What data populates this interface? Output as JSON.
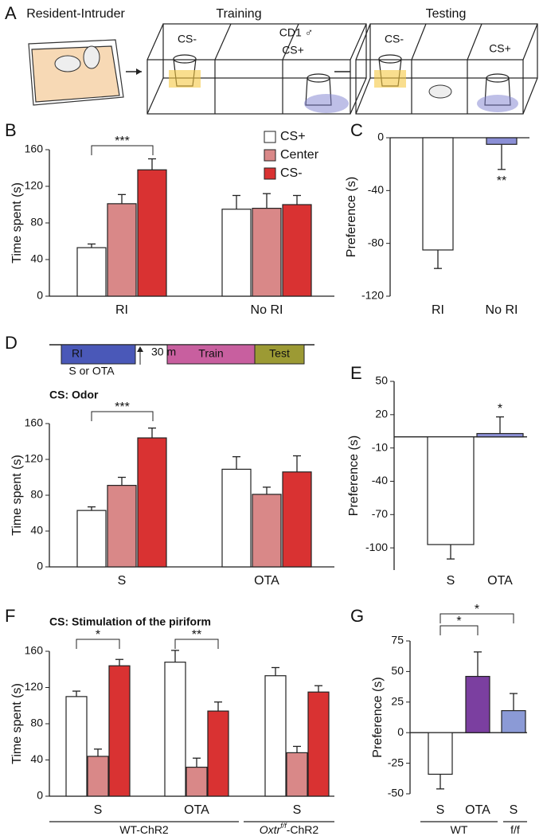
{
  "panel_a": {
    "label": "A",
    "titles": [
      "Resident-Intruder",
      "Training",
      "Testing"
    ],
    "labels": [
      "CS-",
      "CD1 ♂",
      "CS+",
      "CS-",
      "CS+"
    ]
  },
  "chart_data": [
    {
      "type": "bar",
      "panel": "B",
      "ylabel": "Time spent (s)",
      "categories": [
        "RI",
        "No RI"
      ],
      "series": [
        {
          "name": "CS+",
          "color": "#ffffff",
          "values": [
            53,
            95
          ],
          "errors": [
            4,
            15
          ]
        },
        {
          "name": "Center",
          "color": "#d98888",
          "values": [
            101,
            96
          ],
          "errors": [
            10,
            16
          ]
        },
        {
          "name": "CS-",
          "color": "#d93232",
          "values": [
            138,
            100
          ],
          "errors": [
            12,
            10
          ]
        }
      ],
      "ylim": [
        0,
        160
      ],
      "yticks": [
        0,
        40,
        80,
        120,
        160
      ],
      "legend": "top-right",
      "annotations": [
        "***"
      ]
    },
    {
      "type": "bar",
      "panel": "C",
      "ylabel": "Preference (s)",
      "categories": [
        "RI",
        "No RI"
      ],
      "values": [
        -85,
        -5
      ],
      "errors": [
        14,
        19
      ],
      "colors": [
        "#ffffff",
        "#8b8fd6"
      ],
      "ylim": [
        -120,
        0
      ],
      "yticks": [
        -120,
        -80,
        -40,
        0
      ],
      "annotations": [
        "**"
      ]
    },
    {
      "type": "bar",
      "panel": "D",
      "title": "CS: Odor",
      "ylabel": "Time spent (s)",
      "categories": [
        "S",
        "OTA"
      ],
      "timeline": [
        "RI",
        "S or OTA",
        "30 m",
        "Train",
        "Test"
      ],
      "series": [
        {
          "name": "CS+",
          "color": "#ffffff",
          "values": [
            63,
            109
          ],
          "errors": [
            4,
            14
          ]
        },
        {
          "name": "Center",
          "color": "#d98888",
          "values": [
            91,
            81
          ],
          "errors": [
            9,
            8
          ]
        },
        {
          "name": "CS-",
          "color": "#d93232",
          "values": [
            144,
            106
          ],
          "errors": [
            11,
            18
          ]
        }
      ],
      "ylim": [
        0,
        160
      ],
      "yticks": [
        0,
        40,
        80,
        120,
        160
      ],
      "annotations": [
        "***"
      ]
    },
    {
      "type": "bar",
      "panel": "E",
      "ylabel": "Preference (s)",
      "categories": [
        "S",
        "OTA"
      ],
      "values": [
        -97,
        3
      ],
      "errors": [
        13,
        15
      ],
      "colors": [
        "#ffffff",
        "#8b8fd6"
      ],
      "ylim": [
        -120,
        50
      ],
      "yticks": [
        -100,
        -70,
        -40,
        -10,
        20,
        50
      ],
      "annotations": [
        "*"
      ]
    },
    {
      "type": "bar",
      "panel": "F",
      "title": "CS: Stimulation of the piriform",
      "ylabel": "Time spent (s)",
      "categories": [
        "S",
        "OTA",
        "S"
      ],
      "groups": [
        [
          "WT-ChR2"
        ],
        [
          "Oxtr",
          "f/f",
          "-ChR2"
        ]
      ],
      "series": [
        {
          "name": "CS+",
          "color": "#ffffff",
          "values": [
            110,
            148,
            133
          ],
          "errors": [
            6,
            13,
            9
          ]
        },
        {
          "name": "Center",
          "color": "#d98888",
          "values": [
            44,
            32,
            48
          ],
          "errors": [
            8,
            10,
            7
          ]
        },
        {
          "name": "CS-",
          "color": "#d93232",
          "values": [
            144,
            94,
            115
          ],
          "errors": [
            7,
            10,
            7
          ]
        }
      ],
      "ylim": [
        0,
        160
      ],
      "yticks": [
        0,
        40,
        80,
        120,
        160
      ],
      "annotations": [
        "*",
        "**"
      ]
    },
    {
      "type": "bar",
      "panel": "G",
      "ylabel": "Preference (s)",
      "categories": [
        "S",
        "OTA",
        "S"
      ],
      "groups": [
        [
          "WT"
        ],
        [
          "f/f"
        ]
      ],
      "values": [
        -34,
        46,
        18
      ],
      "errors": [
        12,
        20,
        14
      ],
      "colors": [
        "#ffffff",
        "#7b3fa0",
        "#8b9ad6"
      ],
      "ylim": [
        -50,
        75
      ],
      "yticks": [
        -50,
        -25,
        0,
        25,
        50,
        75
      ],
      "annotations": [
        "*",
        "*"
      ]
    }
  ]
}
